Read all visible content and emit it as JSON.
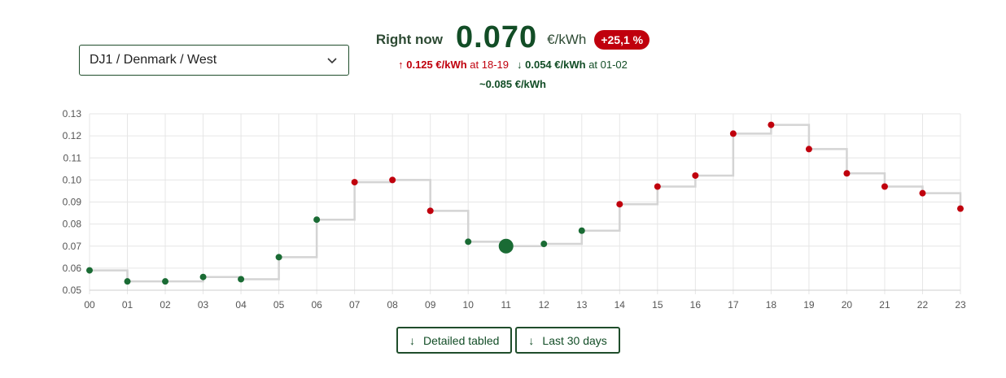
{
  "region_select": {
    "value": "DJ1 / Denmark / West"
  },
  "current": {
    "label": "Right now",
    "value": "0.070",
    "unit": "€/kWh",
    "change": "+25,1 %"
  },
  "max": {
    "arrow": "↑",
    "value": "0.125 €/kWh",
    "at_text": "at 18-19"
  },
  "min": {
    "arrow": "↓",
    "value": "0.054 €/kWh",
    "at_text": "at 01-02"
  },
  "average": "~0.085 €/kWh",
  "buttons": {
    "detailed": {
      "arrow": "↓",
      "label": "Detailed tabled"
    },
    "last30": {
      "arrow": "↓",
      "label": "Last 30 days"
    }
  },
  "colors": {
    "green": "#1a6b34",
    "red": "#c0000d",
    "step_line": "#d4d4d4",
    "grid": "#e6e6e6"
  },
  "chart_data": {
    "type": "line",
    "x": [
      "00",
      "01",
      "02",
      "03",
      "04",
      "05",
      "06",
      "07",
      "08",
      "09",
      "10",
      "11",
      "12",
      "13",
      "14",
      "15",
      "16",
      "17",
      "18",
      "19",
      "20",
      "21",
      "22",
      "23"
    ],
    "values": [
      0.059,
      0.054,
      0.054,
      0.056,
      0.055,
      0.065,
      0.082,
      0.099,
      0.1,
      0.086,
      0.072,
      0.07,
      0.071,
      0.077,
      0.089,
      0.097,
      0.102,
      0.121,
      0.125,
      0.114,
      0.103,
      0.097,
      0.094,
      0.087
    ],
    "point_colors": [
      "green",
      "green",
      "green",
      "green",
      "green",
      "green",
      "green",
      "red",
      "red",
      "red",
      "green",
      "green",
      "green",
      "green",
      "red",
      "red",
      "red",
      "red",
      "red",
      "red",
      "red",
      "red",
      "red",
      "red"
    ],
    "current_index": 11,
    "ylim": [
      0.05,
      0.13
    ],
    "yticks": [
      "0.05",
      "0.06",
      "0.07",
      "0.08",
      "0.09",
      "0.10",
      "0.11",
      "0.12",
      "0.13"
    ],
    "grid": true,
    "title": "",
    "xlabel": "",
    "ylabel": ""
  }
}
